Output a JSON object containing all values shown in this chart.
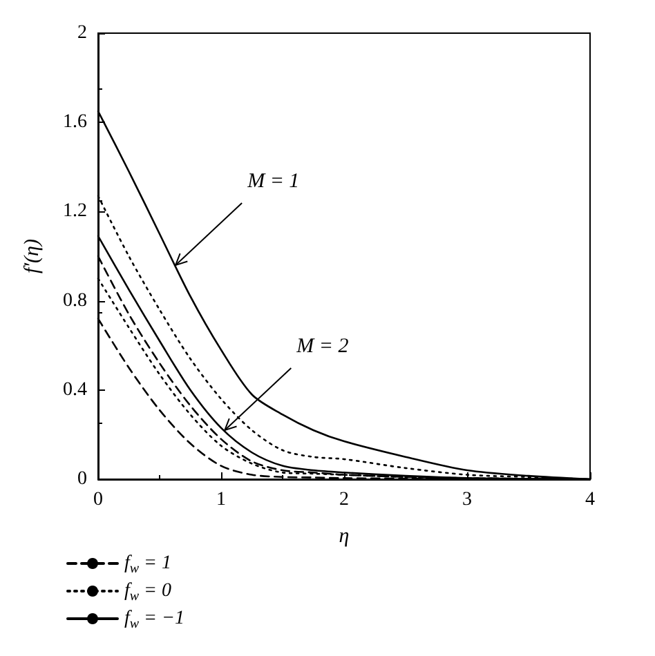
{
  "chart_data": {
    "type": "line",
    "xlabel": "η",
    "ylabel": "f′(η)",
    "x": [
      0,
      0.25,
      0.5,
      0.75,
      1,
      1.25,
      1.5,
      1.75,
      2,
      2.5,
      3,
      3.5,
      4
    ],
    "xlim": [
      0,
      4
    ],
    "xticks": [
      0,
      1,
      2,
      3,
      4
    ],
    "ylim": [
      0,
      2
    ],
    "yticks": [
      0,
      0.4,
      0.8,
      1.2,
      1.6,
      2
    ],
    "grid": false,
    "legend": "bottom left",
    "marker": "none",
    "series": [
      {
        "name": "f$_{w}$ = 1",
        "color": "#000000",
        "line_style": "dashed",
        "values": [
          1.0,
          0.74,
          0.52,
          0.33,
          0.18,
          0.08,
          0.04,
          0.03,
          0.02,
          0.01,
          0.005,
          0.002,
          0
        ]
      },
      {
        "name": "f$_{w}$ = 0",
        "color": "#000000",
        "line_style": "dotted",
        "values": [
          1.27,
          1.0,
          0.76,
          0.54,
          0.36,
          0.22,
          0.13,
          0.1,
          0.09,
          0.05,
          0.02,
          0.01,
          0
        ]
      },
      {
        "name": "f$_{w}$ = −1",
        "color": "#000000",
        "line_style": "solid",
        "values": [
          1.65,
          1.38,
          1.1,
          0.82,
          0.58,
          0.38,
          0.29,
          0.22,
          0.17,
          0.1,
          0.04,
          0.015,
          0
        ]
      },
      {
        "color": "#000000",
        "line_style": "dashed",
        "values": [
          0.72,
          0.5,
          0.31,
          0.16,
          0.06,
          0.02,
          0.01,
          0.008,
          0.005,
          0.003,
          0.002,
          0.001,
          0
        ]
      },
      {
        "color": "#000000",
        "line_style": "dotted",
        "values": [
          0.9,
          0.68,
          0.47,
          0.29,
          0.15,
          0.07,
          0.03,
          0.025,
          0.02,
          0.01,
          0.005,
          0.002,
          0
        ]
      },
      {
        "color": "#000000",
        "line_style": "solid",
        "values": [
          1.09,
          0.85,
          0.62,
          0.4,
          0.23,
          0.12,
          0.06,
          0.04,
          0.03,
          0.015,
          0.005,
          0.002,
          0
        ]
      }
    ],
    "annotations": [
      {
        "text": "M = 1",
        "x": 0.63,
        "y": 0.96
      },
      {
        "text": "M = 2",
        "x": 1.03,
        "y": 0.22
      }
    ]
  }
}
